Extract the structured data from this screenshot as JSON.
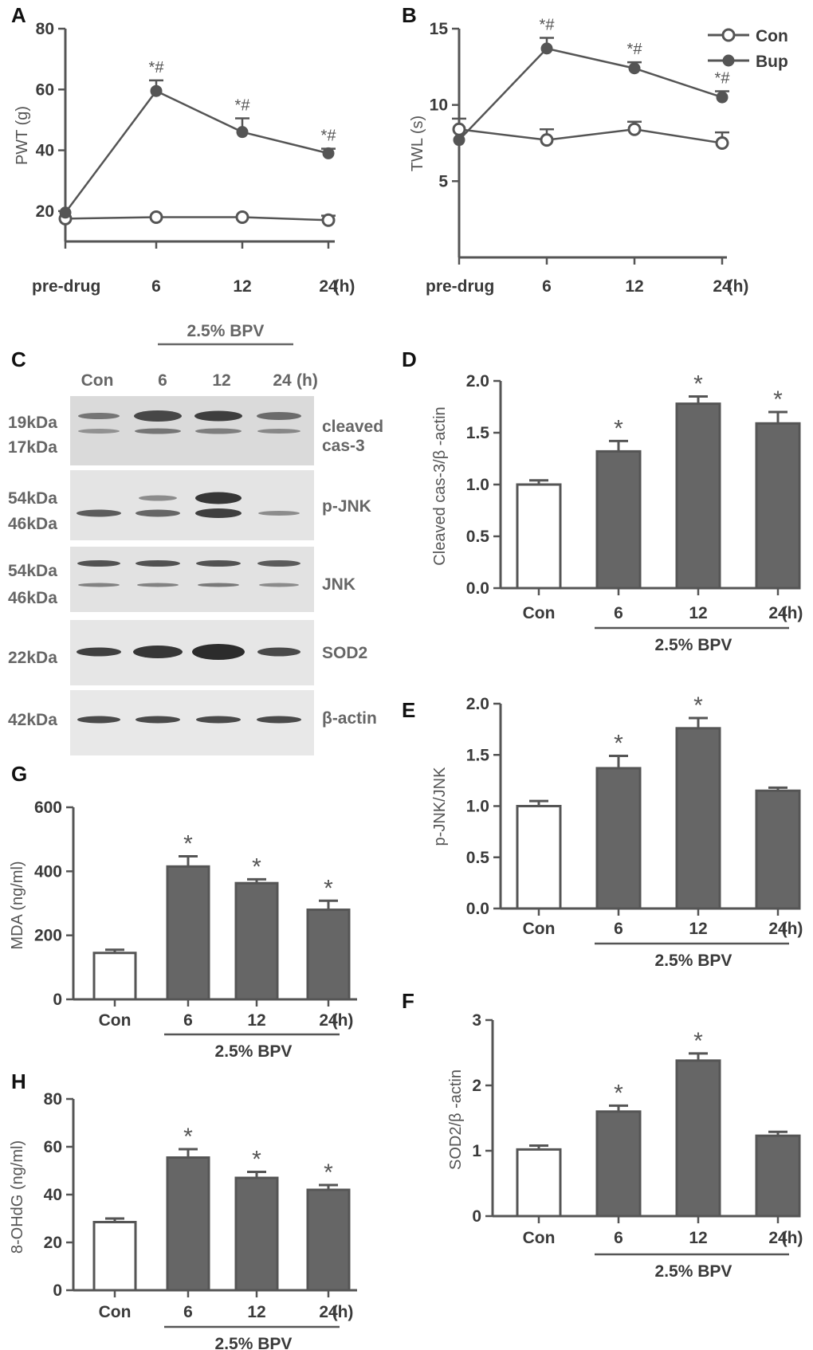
{
  "panels": {
    "A": "A",
    "B": "B",
    "C": "C",
    "D": "D",
    "E": "E",
    "F": "F",
    "G": "G",
    "H": "H"
  },
  "legend": {
    "con": "Con",
    "bup": "Bup"
  },
  "colors": {
    "axis": "#555555",
    "bar_fill": "#666666",
    "bar_open": "#ffffff",
    "text": "#3a3a3a"
  },
  "western_blot": {
    "group_label": "2.5% BPV",
    "lane_labels": [
      "Con",
      "6",
      "12",
      "24"
    ],
    "unit": "(h)",
    "bands": [
      {
        "left_labels": [
          "19kDa",
          "17kDa"
        ],
        "right_labels": [
          "cleaved",
          "cas-3"
        ]
      },
      {
        "left_labels": [
          "54kDa",
          "46kDa"
        ],
        "right_labels": [
          "p-JNK"
        ]
      },
      {
        "left_labels": [
          "54kDa",
          "46kDa"
        ],
        "right_labels": [
          "JNK"
        ]
      },
      {
        "left_labels": [
          "22kDa"
        ],
        "right_labels": [
          "SOD2"
        ]
      },
      {
        "left_labels": [
          "42kDa"
        ],
        "right_labels": [
          "β-actin"
        ]
      }
    ]
  },
  "chart_data": [
    {
      "id": "A",
      "type": "line",
      "x": [
        "pre-drug",
        "6",
        "12",
        "24"
      ],
      "x_unit": "(h)",
      "ylabel": "PWT (g)",
      "ylim": [
        10,
        80
      ],
      "yticks": [
        20,
        40,
        60,
        80
      ],
      "series": [
        {
          "name": "Con",
          "values": [
            17.5,
            18,
            18,
            17
          ],
          "errors": [
            0,
            0,
            0,
            1.5
          ]
        },
        {
          "name": "Bup",
          "values": [
            19.5,
            59.5,
            46,
            39
          ],
          "errors": [
            0,
            3.5,
            4.5,
            1.5
          ]
        }
      ],
      "annotations": [
        "",
        "*#",
        "*#",
        "*#"
      ]
    },
    {
      "id": "B",
      "type": "line",
      "x": [
        "pre-drug",
        "6",
        "12",
        "24"
      ],
      "x_unit": "(h)",
      "ylabel": "TWL (s)",
      "ylim": [
        0,
        15
      ],
      "yticks": [
        5,
        10,
        15
      ],
      "series": [
        {
          "name": "Con",
          "values": [
            8.4,
            7.7,
            8.4,
            7.5
          ],
          "errors": [
            0.7,
            0.7,
            0.5,
            0.7
          ]
        },
        {
          "name": "Bup",
          "values": [
            7.7,
            13.7,
            12.4,
            10.5
          ],
          "errors": [
            0,
            0.7,
            0.4,
            0.4
          ]
        }
      ],
      "annotations": [
        "",
        "*#",
        "*#",
        "*#"
      ]
    },
    {
      "id": "D",
      "type": "bar",
      "categories": [
        "Con",
        "6",
        "12",
        "24"
      ],
      "x_unit": "(h)",
      "group_label": "2.5% BPV",
      "ylabel": "Cleaved cas-3/β -actin",
      "ylim": [
        0,
        2.0
      ],
      "yticks": [
        "0.0",
        "0.5",
        "1.0",
        "1.5",
        "2.0"
      ],
      "values": [
        1.0,
        1.32,
        1.78,
        1.59
      ],
      "errors": [
        0.04,
        0.1,
        0.07,
        0.11
      ],
      "annotations": [
        "",
        "*",
        "*",
        "*"
      ]
    },
    {
      "id": "E",
      "type": "bar",
      "categories": [
        "Con",
        "6",
        "12",
        "24"
      ],
      "x_unit": "(h)",
      "group_label": "2.5% BPV",
      "ylabel": "p-JNK/JNK",
      "ylim": [
        0,
        2.0
      ],
      "yticks": [
        "0.0",
        "0.5",
        "1.0",
        "1.5",
        "2.0"
      ],
      "values": [
        1.0,
        1.37,
        1.76,
        1.15
      ],
      "errors": [
        0.05,
        0.12,
        0.1,
        0.03
      ],
      "annotations": [
        "",
        "*",
        "*",
        ""
      ]
    },
    {
      "id": "F",
      "type": "bar",
      "categories": [
        "Con",
        "6",
        "12",
        "24"
      ],
      "x_unit": "(h)",
      "group_label": "2.5% BPV",
      "ylabel": "SOD2/β -actin",
      "ylim": [
        0,
        3
      ],
      "yticks": [
        "0",
        "1",
        "2",
        "3"
      ],
      "values": [
        1.02,
        1.6,
        2.38,
        1.23
      ],
      "errors": [
        0.06,
        0.09,
        0.11,
        0.06
      ],
      "annotations": [
        "",
        "*",
        "*",
        ""
      ]
    },
    {
      "id": "G",
      "type": "bar",
      "categories": [
        "Con",
        "6",
        "12",
        "24"
      ],
      "x_unit": "(h)",
      "group_label": "2.5% BPV",
      "ylabel": "MDA  (ng/ml)",
      "ylim": [
        0,
        600
      ],
      "yticks": [
        "0",
        "200",
        "400",
        "600"
      ],
      "values": [
        145,
        415,
        363,
        280
      ],
      "errors": [
        10,
        32,
        12,
        28
      ],
      "annotations": [
        "",
        "*",
        "*",
        "*"
      ]
    },
    {
      "id": "H",
      "type": "bar",
      "categories": [
        "Con",
        "6",
        "12",
        "24"
      ],
      "x_unit": "(h)",
      "group_label": "2.5% BPV",
      "ylabel": "8-OHdG (ng/ml)",
      "ylim": [
        0,
        80
      ],
      "yticks": [
        "0",
        "20",
        "40",
        "60",
        "80"
      ],
      "values": [
        28.5,
        55.5,
        47,
        42
      ],
      "errors": [
        1.5,
        3.5,
        2.5,
        2
      ],
      "annotations": [
        "",
        "*",
        "*",
        "*"
      ]
    }
  ]
}
